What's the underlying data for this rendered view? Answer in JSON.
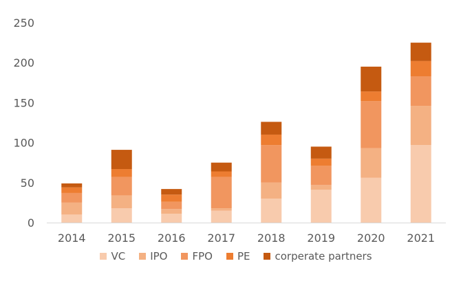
{
  "chart_data": {
    "type": "bar",
    "stacked": true,
    "title": "",
    "xlabel": "",
    "ylabel": "",
    "ylim": [
      0,
      250
    ],
    "yticks": [
      0,
      50,
      100,
      150,
      200,
      250
    ],
    "grid": false,
    "legend_position": "bottom",
    "categories": [
      "2014",
      "2015",
      "2016",
      "2017",
      "2018",
      "2019",
      "2020",
      "2021"
    ],
    "series": [
      {
        "name": "VC",
        "color": "#f8cbad",
        "values": [
          10,
          18,
          11,
          15,
          30,
          41,
          56,
          97
        ]
      },
      {
        "name": "IPO",
        "color": "#f4b183",
        "values": [
          15,
          16,
          6,
          3,
          20,
          6,
          37,
          49
        ]
      },
      {
        "name": "FPO",
        "color": "#f1965f",
        "values": [
          12,
          23,
          9,
          39,
          47,
          24,
          59,
          37
        ]
      },
      {
        "name": "PE",
        "color": "#ed7d31",
        "values": [
          7,
          10,
          9,
          7,
          13,
          9,
          12,
          19
        ]
      },
      {
        "name": "corperate partners",
        "color": "#c55a11",
        "values": [
          5,
          24,
          7,
          11,
          16,
          15,
          31,
          23
        ]
      }
    ]
  }
}
